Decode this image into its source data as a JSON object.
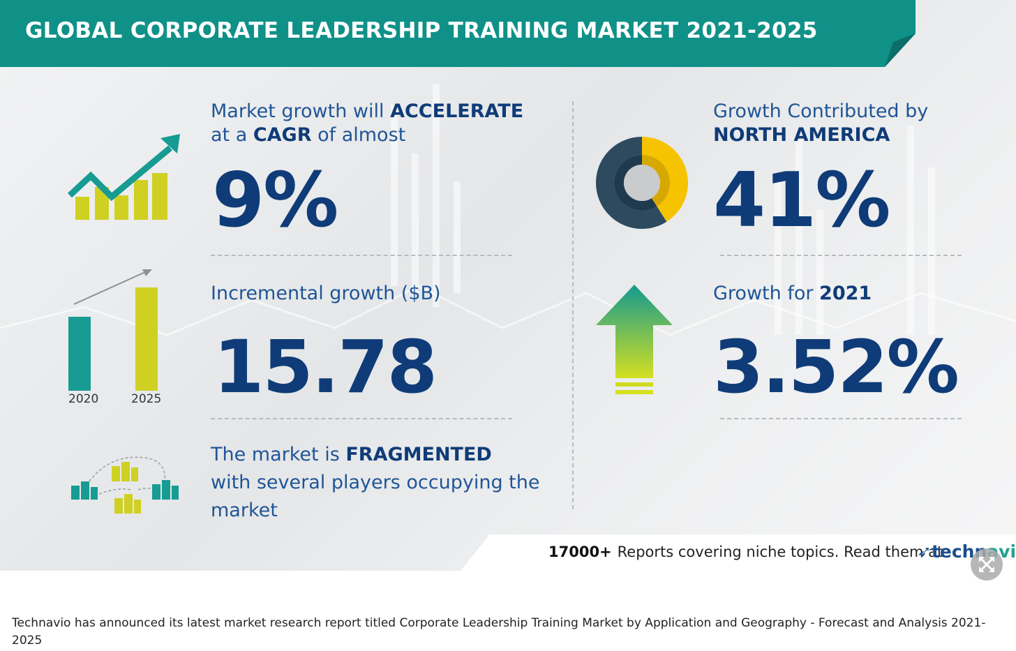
{
  "title": "GLOBAL CORPORATE LEADERSHIP TRAINING MARKET 2021-2025",
  "cagr": {
    "line1_prefix": "Market growth will ",
    "line1_bold": "ACCELERATE",
    "line2_prefix": "at a ",
    "line2_bold": "CAGR",
    "line2_suffix": " of almost",
    "value": "9%"
  },
  "incremental": {
    "label": "Incremental growth ($B)",
    "value": "15.78",
    "bar_years": [
      "2020",
      "2025"
    ]
  },
  "fragmented": {
    "line1_prefix": "The market is ",
    "line1_bold": "FRAGMENTED",
    "line2": "with several players occupying the",
    "line3": "market"
  },
  "region": {
    "line1": "Growth Contributed by",
    "line2_bold": "NORTH AMERICA",
    "value": "41%",
    "share_fraction": 0.41
  },
  "yoy": {
    "prefix": "Growth for ",
    "year_bold": "2021",
    "value": "3.52%"
  },
  "footer": {
    "count": "17000+",
    "text": "Reports covering niche topics. Read them at",
    "logo_part1": "techn",
    "logo_part2": "avio"
  },
  "caption": "Technavio has announced its latest market research report titled Corporate Leadership Training Market by Application and Geography - Forecast and Analysis 2021-2025",
  "colors": {
    "banner_teal": "#0f9188",
    "navy": "#0f3c78",
    "teal_icon": "#179b92",
    "yellow_icon": "#cfd021",
    "donut_dark": "#2d4a5f",
    "donut_yellow": "#f5c300"
  }
}
